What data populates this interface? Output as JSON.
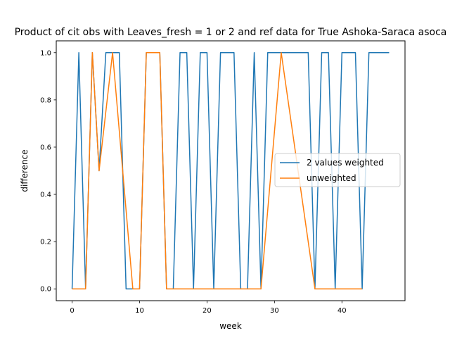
{
  "chart_data": {
    "type": "line",
    "title": "Product of cit obs with Leaves_fresh = 1 or 2 and ref data for True Ashoka-Saraca asoca",
    "xlabel": "week",
    "ylabel": "difference",
    "xlim": [
      -2.35,
      49.35
    ],
    "ylim": [
      -0.05,
      1.05
    ],
    "xticks": [
      0,
      10,
      20,
      30,
      40
    ],
    "yticks": [
      0.0,
      0.2,
      0.4,
      0.6,
      0.8,
      1.0
    ],
    "xtick_labels": [
      "0",
      "10",
      "20",
      "30",
      "40"
    ],
    "ytick_labels": [
      "0.0",
      "0.2",
      "0.4",
      "0.6",
      "0.8",
      "1.0"
    ],
    "grid": false,
    "legend_position": "center-right",
    "series": [
      {
        "name": "2 values weighted",
        "color": "#1f77b4",
        "x": [
          0,
          1,
          2,
          3,
          4,
          5,
          6,
          7,
          8,
          9,
          10,
          11,
          12,
          13,
          14,
          15,
          16,
          17,
          18,
          19,
          20,
          21,
          22,
          23,
          24,
          25,
          26,
          27,
          28,
          29,
          30,
          31,
          32,
          33,
          34,
          35,
          36,
          37,
          38,
          39,
          40,
          41,
          42,
          43,
          44,
          45,
          46,
          47
        ],
        "y": [
          0,
          1,
          0,
          1,
          0.5,
          1,
          1,
          1,
          0,
          0,
          0,
          1,
          1,
          1,
          0,
          0,
          1,
          1,
          0,
          1,
          1,
          0,
          1,
          1,
          1,
          0,
          0,
          1,
          0,
          1,
          1,
          1,
          1,
          1,
          1,
          1,
          0,
          1,
          1,
          0,
          1,
          1,
          1,
          0,
          1,
          1,
          1,
          1
        ]
      },
      {
        "name": "unweighted",
        "color": "#ff7f0e",
        "x": [
          0,
          2,
          3,
          4,
          6,
          9,
          10,
          11,
          13,
          14,
          28,
          31,
          36,
          43
        ],
        "y": [
          0,
          0,
          1,
          0.5,
          1,
          0,
          0,
          1,
          1,
          0,
          0,
          1,
          0,
          0
        ]
      }
    ]
  }
}
